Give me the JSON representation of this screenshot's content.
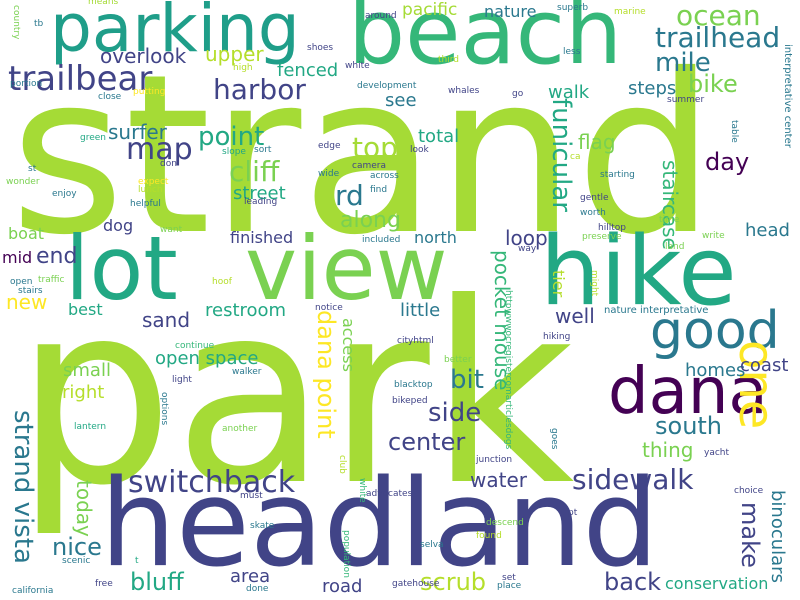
{
  "colors": {
    "background": "#ffffff",
    "palette": [
      "#a5db36",
      "#7ad151",
      "#22a884",
      "#2a788e",
      "#414487",
      "#440154",
      "#fde725",
      "#35b779",
      "#1f9e89"
    ]
  },
  "words": [
    {
      "text": "strand",
      "color": "#a5db36"
    },
    {
      "text": "park",
      "color": "#a5db36"
    },
    {
      "text": "beach",
      "color": "#35b779"
    },
    {
      "text": "headland",
      "color": "#414487"
    },
    {
      "text": "lot",
      "color": "#22a884"
    },
    {
      "text": "view",
      "color": "#7ad151"
    },
    {
      "text": "hike",
      "color": "#22a884"
    },
    {
      "text": "parking",
      "color": "#1f9e89"
    },
    {
      "text": "dana",
      "color": "#440154"
    },
    {
      "text": "good",
      "color": "#2a788e"
    },
    {
      "text": "one",
      "color": "#fde725"
    },
    {
      "text": "trailbear",
      "color": "#414487"
    },
    {
      "text": "ocean",
      "color": "#7ad151"
    },
    {
      "text": "trailhead",
      "color": "#2a788e"
    },
    {
      "text": "mile",
      "color": "#2a788e"
    },
    {
      "text": "harbor",
      "color": "#414487"
    },
    {
      "text": "bike",
      "color": "#7ad151"
    },
    {
      "text": "overlook",
      "color": "#414487"
    },
    {
      "text": "upper",
      "color": "#b5de2b"
    },
    {
      "text": "fenced",
      "color": "#22a884"
    },
    {
      "text": "pacific",
      "color": "#a5db36"
    },
    {
      "text": "nature",
      "color": "#2a788e"
    },
    {
      "text": "steps",
      "color": "#2a788e"
    },
    {
      "text": "walk",
      "color": "#22a884"
    },
    {
      "text": "see",
      "color": "#2a788e"
    },
    {
      "text": "point",
      "color": "#22a884"
    },
    {
      "text": "surfer",
      "color": "#2a788e"
    },
    {
      "text": "map",
      "color": "#414487"
    },
    {
      "text": "top",
      "color": "#a5db36"
    },
    {
      "text": "cliff",
      "color": "#7ad151"
    },
    {
      "text": "total",
      "color": "#22a884"
    },
    {
      "text": "flag",
      "color": "#7ad151"
    },
    {
      "text": "rd",
      "color": "#2a788e"
    },
    {
      "text": "street",
      "color": "#22a884"
    },
    {
      "text": "day",
      "color": "#440154"
    },
    {
      "text": "along",
      "color": "#7ad151"
    },
    {
      "text": "funicular",
      "color": "#22a884"
    },
    {
      "text": "staircase",
      "color": "#35b779"
    },
    {
      "text": "end",
      "color": "#414487"
    },
    {
      "text": "dog",
      "color": "#414487"
    },
    {
      "text": "boat",
      "color": "#7ad151"
    },
    {
      "text": "finished",
      "color": "#414487"
    },
    {
      "text": "north",
      "color": "#2a788e"
    },
    {
      "text": "loop",
      "color": "#414487"
    },
    {
      "text": "head",
      "color": "#2a788e"
    },
    {
      "text": "mid",
      "color": "#440154"
    },
    {
      "text": "new",
      "color": "#fde725"
    },
    {
      "text": "best",
      "color": "#22a884"
    },
    {
      "text": "sand",
      "color": "#414487"
    },
    {
      "text": "restroom",
      "color": "#22a884"
    },
    {
      "text": "little",
      "color": "#2a788e"
    },
    {
      "text": "well",
      "color": "#414487"
    },
    {
      "text": "tier",
      "color": "#b5de2b"
    },
    {
      "text": "pocket mouse",
      "color": "#35b779"
    },
    {
      "text": "dana point",
      "color": "#fde725"
    },
    {
      "text": "access",
      "color": "#7ad151"
    },
    {
      "text": "strand vista",
      "color": "#2a788e"
    },
    {
      "text": "open space",
      "color": "#22a884"
    },
    {
      "text": "small",
      "color": "#7ad151"
    },
    {
      "text": "bit",
      "color": "#2a788e"
    },
    {
      "text": "right",
      "color": "#b5de2b"
    },
    {
      "text": "side",
      "color": "#414487"
    },
    {
      "text": "center",
      "color": "#414487"
    },
    {
      "text": "south",
      "color": "#2a788e"
    },
    {
      "text": "homes",
      "color": "#2a788e"
    },
    {
      "text": "coast",
      "color": "#414487"
    },
    {
      "text": "thing",
      "color": "#7ad151"
    },
    {
      "text": "switchback",
      "color": "#414487"
    },
    {
      "text": "sidewalk",
      "color": "#414487"
    },
    {
      "text": "water",
      "color": "#414487"
    },
    {
      "text": "today",
      "color": "#7ad151"
    },
    {
      "text": "nice",
      "color": "#2a788e"
    },
    {
      "text": "bluff",
      "color": "#22a884"
    },
    {
      "text": "area",
      "color": "#414487"
    },
    {
      "text": "road",
      "color": "#414487"
    },
    {
      "text": "scrub",
      "color": "#b5de2b"
    },
    {
      "text": "back",
      "color": "#414487"
    },
    {
      "text": "make",
      "color": "#414487"
    },
    {
      "text": "binoculars",
      "color": "#2a788e"
    },
    {
      "text": "conservation",
      "color": "#22a884"
    },
    {
      "text": "means",
      "color": "#a5db36"
    },
    {
      "text": "tb",
      "color": "#2a788e"
    },
    {
      "text": "country",
      "color": "#7ad151"
    },
    {
      "text": "portion",
      "color": "#2a788e"
    },
    {
      "text": "close",
      "color": "#2a788e"
    },
    {
      "text": "putting",
      "color": "#fde725"
    },
    {
      "text": "green",
      "color": "#22a884"
    },
    {
      "text": "don",
      "color": "#414487"
    },
    {
      "text": "st",
      "color": "#2a788e"
    },
    {
      "text": "wonder",
      "color": "#7ad151"
    },
    {
      "text": "enjoy",
      "color": "#2a788e"
    },
    {
      "text": "expect",
      "color": "#fde725"
    },
    {
      "text": "lunch",
      "color": "#b5de2b"
    },
    {
      "text": "helpful",
      "color": "#2a788e"
    },
    {
      "text": "want",
      "color": "#7ad151"
    },
    {
      "text": "open",
      "color": "#2a788e"
    },
    {
      "text": "stairs",
      "color": "#2a788e"
    },
    {
      "text": "traffic",
      "color": "#7ad151"
    },
    {
      "text": "hoof",
      "color": "#b5de2b"
    },
    {
      "text": "notice",
      "color": "#414487"
    },
    {
      "text": "continue",
      "color": "#35b779"
    },
    {
      "text": "light",
      "color": "#414487"
    },
    {
      "text": "walker",
      "color": "#2a788e"
    },
    {
      "text": "lantern",
      "color": "#22a884"
    },
    {
      "text": "options",
      "color": "#2a788e"
    },
    {
      "text": "another",
      "color": "#7ad151"
    },
    {
      "text": "white",
      "color": "#35b779"
    },
    {
      "text": "club",
      "color": "#b5de2b"
    },
    {
      "text": "must",
      "color": "#414487"
    },
    {
      "text": "skate",
      "color": "#2a788e"
    },
    {
      "text": "scenic",
      "color": "#2a788e"
    },
    {
      "text": "free",
      "color": "#414487"
    },
    {
      "text": "california",
      "color": "#2a788e"
    },
    {
      "text": "done",
      "color": "#2a788e"
    },
    {
      "text": "t",
      "color": "#22a884"
    },
    {
      "text": "gatehouse",
      "color": "#414487"
    },
    {
      "text": "population",
      "color": "#35b779"
    },
    {
      "text": "advocates",
      "color": "#414487"
    },
    {
      "text": "shoes",
      "color": "#414487"
    },
    {
      "text": "white",
      "color": "#414487"
    },
    {
      "text": "around",
      "color": "#414487"
    },
    {
      "text": "development",
      "color": "#2a788e"
    },
    {
      "text": "whales",
      "color": "#414487"
    },
    {
      "text": "third",
      "color": "#b5de2b"
    },
    {
      "text": "superb",
      "color": "#2a788e"
    },
    {
      "text": "less",
      "color": "#2a788e"
    },
    {
      "text": "marine",
      "color": "#b5de2b"
    },
    {
      "text": "summer",
      "color": "#414487"
    },
    {
      "text": "interpretative center",
      "color": "#2a788e"
    },
    {
      "text": "table",
      "color": "#2a788e"
    },
    {
      "text": "go",
      "color": "#414487"
    },
    {
      "text": "edge",
      "color": "#414487"
    },
    {
      "text": "wide",
      "color": "#2a788e"
    },
    {
      "text": "camera",
      "color": "#414487"
    },
    {
      "text": "across",
      "color": "#2a788e"
    },
    {
      "text": "find",
      "color": "#2a788e"
    },
    {
      "text": "look",
      "color": "#414487"
    },
    {
      "text": "slope",
      "color": "#22a884"
    },
    {
      "text": "sort",
      "color": "#2a788e"
    },
    {
      "text": "leading",
      "color": "#414487"
    },
    {
      "text": "high",
      "color": "#b5de2b"
    },
    {
      "text": "ca",
      "color": "#b5de2b"
    },
    {
      "text": "starting",
      "color": "#2a788e"
    },
    {
      "text": "gentle",
      "color": "#414487"
    },
    {
      "text": "worth",
      "color": "#2a788e"
    },
    {
      "text": "time",
      "color": "#7ad151"
    },
    {
      "text": "hilltop",
      "color": "#414487"
    },
    {
      "text": "preserve",
      "color": "#7ad151"
    },
    {
      "text": "write",
      "color": "#7ad151"
    },
    {
      "text": "land",
      "color": "#7ad151"
    },
    {
      "text": "included",
      "color": "#2a788e"
    },
    {
      "text": "way",
      "color": "#414487"
    },
    {
      "text": "might",
      "color": "#b5de2b"
    },
    {
      "text": "nature interpretative",
      "color": "#2a788e"
    },
    {
      "text": "hiking",
      "color": "#414487"
    },
    {
      "text": "cityhtml",
      "color": "#414487"
    },
    {
      "text": "better",
      "color": "#7ad151"
    },
    {
      "text": "blacktop",
      "color": "#2a788e"
    },
    {
      "text": "bikeped",
      "color": "#414487"
    },
    {
      "text": "httpwwwocregistercomarticlesdogs",
      "color": "#35b779"
    },
    {
      "text": "goes",
      "color": "#2a788e"
    },
    {
      "text": "junction",
      "color": "#414487"
    },
    {
      "text": "yacht",
      "color": "#414487"
    },
    {
      "text": "choice",
      "color": "#414487"
    },
    {
      "text": "pt",
      "color": "#414487"
    },
    {
      "text": "descend",
      "color": "#7ad151"
    },
    {
      "text": "found",
      "color": "#b5de2b"
    },
    {
      "text": "selva",
      "color": "#2a788e"
    },
    {
      "text": "set",
      "color": "#414487"
    },
    {
      "text": "place",
      "color": "#2a788e"
    }
  ]
}
